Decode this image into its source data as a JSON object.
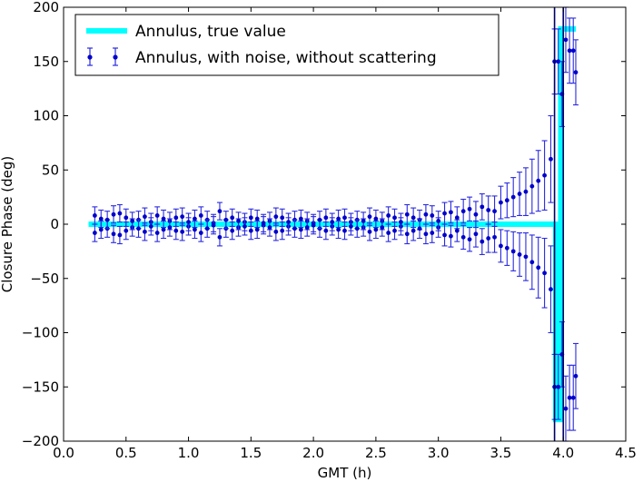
{
  "chart_data": {
    "type": "scatter",
    "title": "",
    "xlabel": "GMT (h)",
    "ylabel": "Closure Phase (deg)",
    "xlim": [
      0.0,
      4.5
    ],
    "ylim": [
      -200,
      200
    ],
    "xticks": [
      0.0,
      0.5,
      1.0,
      1.5,
      2.0,
      2.5,
      3.0,
      3.5,
      4.0,
      4.5
    ],
    "xtick_labels": [
      "0.0",
      "0.5",
      "1.0",
      "1.5",
      "2.0",
      "2.5",
      "3.0",
      "3.5",
      "4.0",
      "4.5"
    ],
    "yticks": [
      -200,
      -150,
      -100,
      -50,
      0,
      50,
      100,
      150,
      200
    ],
    "ytick_labels": [
      "−200",
      "−150",
      "−100",
      "−50",
      "0",
      "50",
      "100",
      "150",
      "200"
    ],
    "grid": false,
    "legend_position": "top-left",
    "colors": {
      "true_value": "#00ffff",
      "noisy": "#0000cc",
      "noisy_err": "#2a2ae0"
    },
    "series": [
      {
        "name": "Annulus, true value",
        "kind": "line",
        "x": [
          0.2,
          3.94,
          3.94,
          3.98,
          3.98,
          4.1
        ],
        "y": [
          0,
          0,
          -180,
          -180,
          180,
          180
        ]
      },
      {
        "name": "Annulus, with noise, without scattering",
        "kind": "errorbar",
        "x": [
          0.25,
          0.3,
          0.35,
          0.4,
          0.45,
          0.5,
          0.55,
          0.6,
          0.65,
          0.7,
          0.75,
          0.8,
          0.85,
          0.9,
          0.95,
          1.0,
          1.05,
          1.1,
          1.15,
          1.2,
          1.25,
          1.3,
          1.35,
          1.4,
          1.45,
          1.5,
          1.55,
          1.6,
          1.65,
          1.7,
          1.75,
          1.8,
          1.85,
          1.9,
          1.95,
          2.0,
          2.05,
          2.1,
          2.15,
          2.2,
          2.25,
          2.3,
          2.35,
          2.4,
          2.45,
          2.5,
          2.55,
          2.6,
          2.65,
          2.7,
          2.75,
          2.8,
          2.85,
          2.9,
          2.95,
          3.0,
          3.05,
          3.1,
          3.15,
          3.2,
          3.25,
          3.3,
          3.35,
          3.4,
          3.45,
          3.5,
          3.55,
          3.6,
          3.65,
          3.7,
          3.75,
          3.8,
          3.85,
          3.9,
          3.93,
          3.96,
          3.99,
          4.02,
          4.05,
          4.08,
          4.1
        ],
        "y": [
          -8,
          5,
          -4,
          9,
          -10,
          6,
          -3,
          4,
          -7,
          2,
          8,
          -5,
          3,
          -6,
          7,
          -2,
          5,
          -8,
          4,
          1,
          12,
          -4,
          6,
          -3,
          2,
          -6,
          5,
          -1,
          3,
          -7,
          6,
          -2,
          4,
          -5,
          3,
          1,
          -4,
          6,
          -2,
          5,
          -6,
          2,
          4,
          -3,
          7,
          -5,
          3,
          -8,
          6,
          -2,
          9,
          -6,
          4,
          -9,
          8,
          -3,
          10,
          -11,
          6,
          -12,
          14,
          -9,
          16,
          -13,
          12,
          -20,
          22,
          -25,
          28,
          -30,
          35,
          -40,
          45,
          -60,
          150,
          -150,
          120,
          -170,
          160,
          -160,
          140
        ],
        "yerr": [
          8,
          8,
          8,
          8,
          8,
          8,
          8,
          8,
          8,
          8,
          8,
          8,
          8,
          8,
          8,
          8,
          8,
          8,
          8,
          8,
          8,
          8,
          8,
          8,
          8,
          8,
          8,
          8,
          8,
          8,
          8,
          8,
          8,
          8,
          8,
          8,
          8,
          8,
          8,
          8,
          8,
          8,
          8,
          8,
          8,
          8,
          8,
          8,
          8,
          8,
          9,
          9,
          9,
          9,
          9,
          9,
          10,
          10,
          10,
          11,
          11,
          12,
          12,
          13,
          14,
          15,
          16,
          18,
          20,
          22,
          25,
          28,
          32,
          40,
          30,
          30,
          30,
          30,
          30,
          30,
          30
        ]
      }
    ],
    "vertical_lines": [
      {
        "x": 3.93,
        "y0": -200,
        "y1": 200
      },
      {
        "x": 4.0,
        "y0": -200,
        "y1": 200
      }
    ]
  }
}
